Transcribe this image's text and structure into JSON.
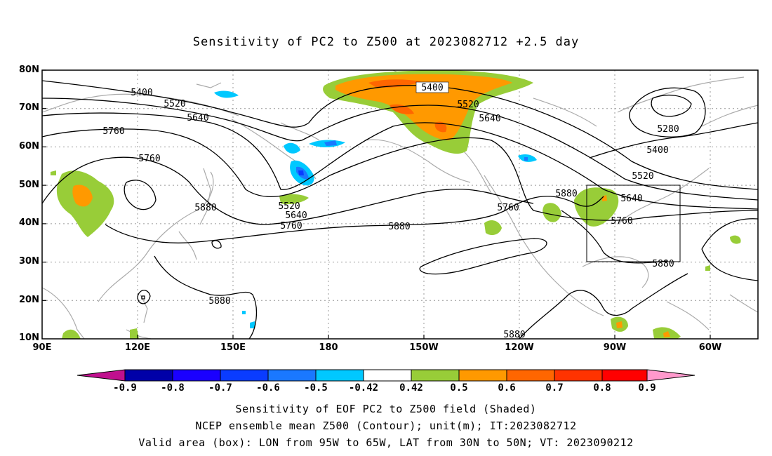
{
  "title": "Sensitivity of PC2 to Z500 at 2023082712 +2.5 day",
  "lat_labels": [
    "80N",
    "70N",
    "60N",
    "50N",
    "40N",
    "30N",
    "20N",
    "10N"
  ],
  "lon_labels": [
    "90E",
    "120E",
    "150E",
    "180",
    "150W",
    "120W",
    "90W",
    "60W"
  ],
  "contour_labels": [
    "5400",
    "5520",
    "5640",
    "5760",
    "5760",
    "5880",
    "5520",
    "5640",
    "5760",
    "5880",
    "5400",
    "5520",
    "5640",
    "5760",
    "5880",
    "5280",
    "5400",
    "5520",
    "5640",
    "5760",
    "5880",
    "5880",
    "5880"
  ],
  "colorbar": {
    "labels": [
      "-0.9",
      "-0.8",
      "-0.7",
      "-0.6",
      "-0.5",
      "-0.42",
      "0.42",
      "0.5",
      "0.6",
      "0.7",
      "0.8",
      "0.9"
    ],
    "colors": [
      "#c0108e",
      "#0000a8",
      "#1a00ff",
      "#0a3cff",
      "#1a78ff",
      "#00c8ff",
      "#ffffff",
      "#98cd38",
      "#ff9900",
      "#ff6600",
      "#ff3300",
      "#ff0000",
      "#ff99cc"
    ]
  },
  "caption": {
    "line1": "Sensitivity of EOF PC2 to Z500 field (Shaded)",
    "line2": "NCEP ensemble mean Z500 (Contour); unit(m); IT:2023082712",
    "line3": "Valid area (box): LON from 95W to 65W, LAT from 30N to 50N; VT: 2023090212"
  }
}
